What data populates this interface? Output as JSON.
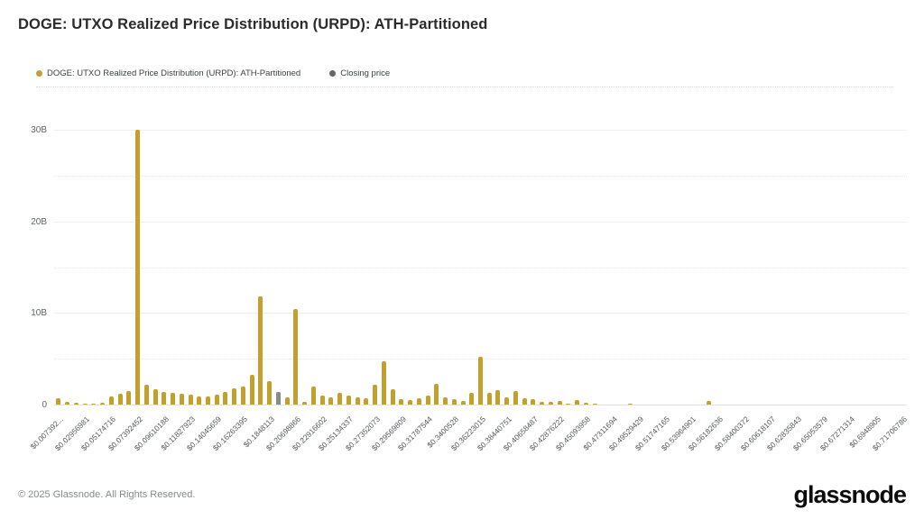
{
  "header": {
    "title": "DOGE: UTXO Realized Price Distribution (URPD): ATH-Partitioned"
  },
  "legend": {
    "items": [
      {
        "label": "DOGE: UTXO Realized Price Distribution (URPD): ATH-Partitioned",
        "color": "#C3A02E"
      },
      {
        "label": "Closing price",
        "color": "#63666A"
      }
    ]
  },
  "footer": {
    "copyright": "© 2025 Glassnode. All Rights Reserved.",
    "logo_text": "glassnode"
  },
  "colors": {
    "bar_gold": "#C3A02E",
    "bar_closing_gray": "#8A8B8D",
    "background": "#FFFFFF",
    "grid": "#E7E7E7",
    "axis_text": "#5F6368"
  },
  "chart_data": {
    "type": "bar",
    "title": "DOGE: UTXO Realized Price Distribution (URPD): ATH-Partitioned",
    "xlabel": "",
    "ylabel": "",
    "unit": "B (billions)",
    "ylim": [
      0,
      33
    ],
    "grid_step": 5,
    "legend_position": "top-left",
    "y_ticks": [
      {
        "value": 30,
        "label": "30B"
      },
      {
        "value": 20,
        "label": "20B"
      },
      {
        "value": 10,
        "label": "10B"
      },
      {
        "value": 0,
        "label": "0"
      }
    ],
    "x_tick_labels": [
      "$0.007392...",
      "$0.02956981",
      "$0.05174716",
      "$0.07392452",
      "$0.09610188",
      "$0.11827923",
      "$0.14045659",
      "$0.16263395",
      "$0.1848113",
      "$0.20698866",
      "$0.22916602",
      "$0.25134337",
      "$0.27352073",
      "$0.29569809",
      "$0.31787544",
      "$0.3400528",
      "$0.36223015",
      "$0.38440751",
      "$0.40658487",
      "$0.42876222",
      "$0.45093958",
      "$0.47311694",
      "$0.49529429",
      "$0.51747165",
      "$0.53964901",
      "$0.56182636",
      "$0.58400372",
      "$0.60618107",
      "$0.62835843",
      "$0.65053579",
      "$0.67271314",
      "$0.6948905",
      "$0.71706786"
    ],
    "label_every_n_bars": 3,
    "bar_price_step": 0.00739245,
    "first_bar_price": 0.00739245,
    "series": [
      {
        "name": "DOGE: UTXO Realized Price Distribution (URPD): ATH-Partitioned",
        "color": "#C3A02E",
        "values": [
          0.7,
          0.3,
          0.2,
          0.1,
          0.1,
          0.15,
          0.9,
          1.2,
          1.5,
          30,
          2.2,
          1.7,
          1.4,
          1.3,
          1.2,
          1.1,
          0.9,
          0.9,
          1.1,
          1.4,
          1.8,
          2.0,
          3.2,
          11.8,
          2.6,
          1.35,
          0.75,
          10.4,
          0.3,
          2.0,
          1.0,
          0.8,
          1.3,
          1.0,
          0.8,
          0.7,
          2.2,
          4.7,
          1.7,
          0.6,
          0.5,
          0.7,
          1.0,
          2.3,
          0.8,
          0.6,
          0.4,
          1.3,
          5.2,
          1.3,
          1.6,
          0.8,
          1.5,
          0.7,
          0.6,
          0.3,
          0.3,
          0.35,
          0.1,
          0.5,
          0.15,
          0.05,
          0,
          0,
          0,
          0.08,
          0,
          0,
          0,
          0,
          0,
          0,
          0,
          0,
          0.35,
          0,
          0,
          0,
          0,
          0,
          0,
          0,
          0,
          0,
          0,
          0,
          0,
          0,
          0,
          0,
          0,
          0,
          0,
          0,
          0,
          0,
          0
        ]
      }
    ],
    "closing_price_bar": {
      "index": 25,
      "value": 1.35,
      "color": "#8A8B8D",
      "name": "Closing price"
    }
  }
}
